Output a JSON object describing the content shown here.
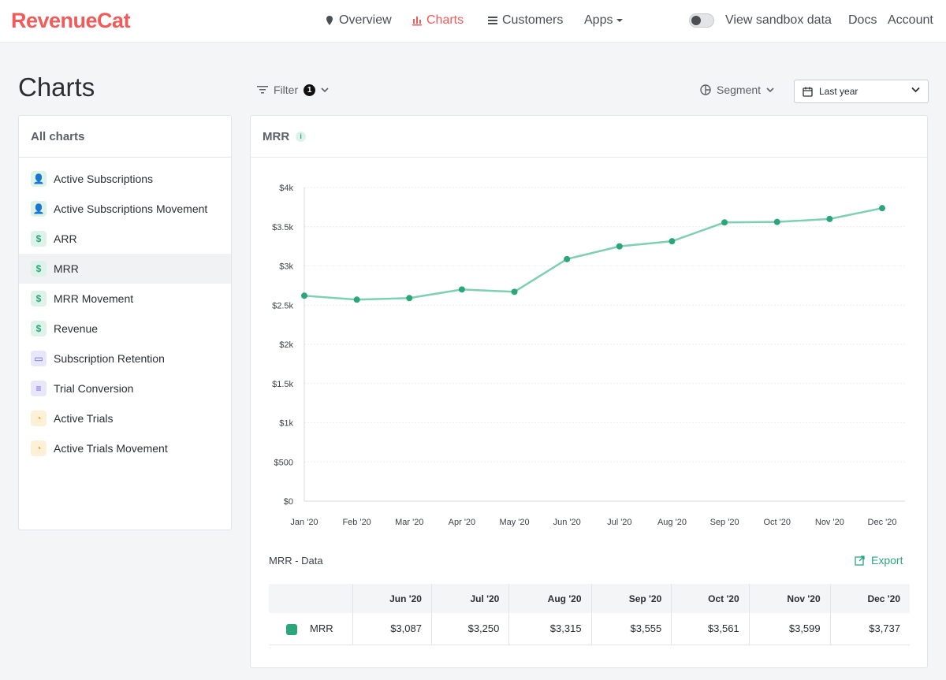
{
  "brand": {
    "name": "RevenueCat",
    "color": "#f25a5a"
  },
  "nav": {
    "items": [
      {
        "label": "Overview",
        "icon": "map-pin-icon"
      },
      {
        "label": "Charts",
        "icon": "bar-chart-icon",
        "active": true
      },
      {
        "label": "Customers",
        "icon": "list-icon"
      },
      {
        "label": "Apps",
        "icon": "caret-down-icon"
      }
    ],
    "sandbox_label": "View sandbox data",
    "sandbox_enabled": false,
    "docs": "Docs",
    "account": "Account"
  },
  "page": {
    "title": "Charts",
    "filter_label": "Filter",
    "filter_count": "1",
    "segment_label": "Segment",
    "date_range": "Last year"
  },
  "sidebar": {
    "heading": "All charts",
    "items": [
      {
        "label": "Active Subscriptions",
        "icon": "user-icon",
        "glyph": "👤",
        "tone": "green"
      },
      {
        "label": "Active Subscriptions Movement",
        "icon": "user-icon",
        "glyph": "👤",
        "tone": "green"
      },
      {
        "label": "ARR",
        "icon": "dollar-icon",
        "glyph": "$",
        "tone": "green"
      },
      {
        "label": "MRR",
        "icon": "dollar-icon",
        "glyph": "$",
        "tone": "green",
        "selected": true
      },
      {
        "label": "MRR Movement",
        "icon": "dollar-icon",
        "glyph": "$",
        "tone": "green"
      },
      {
        "label": "Revenue",
        "icon": "dollar-icon",
        "glyph": "$",
        "tone": "green"
      },
      {
        "label": "Subscription Retention",
        "icon": "calendar-icon",
        "glyph": "▭",
        "tone": "purple"
      },
      {
        "label": "Trial Conversion",
        "icon": "funnel-icon",
        "glyph": "≡",
        "tone": "purple"
      },
      {
        "label": "Active Trials",
        "icon": "clock-icon",
        "glyph": "◔",
        "tone": "orange"
      },
      {
        "label": "Active Trials Movement",
        "icon": "clock-icon",
        "glyph": "◔",
        "tone": "orange"
      }
    ]
  },
  "card": {
    "title": "MRR",
    "info_glyph": "i",
    "data_title": "MRR - Data",
    "export_label": "Export"
  },
  "chart_data": {
    "type": "line",
    "title": "MRR",
    "xlabel": "",
    "ylabel": "",
    "x": [
      "Jan '20",
      "Feb '20",
      "Mar '20",
      "Apr '20",
      "May '20",
      "Jun '20",
      "Jul '20",
      "Aug '20",
      "Sep '20",
      "Oct '20",
      "Nov '20",
      "Dec '20"
    ],
    "series": [
      {
        "name": "MRR",
        "color": "#2ba57a",
        "line_color": "#7fcfb2",
        "values": [
          2620,
          2570,
          2590,
          2700,
          2670,
          3087,
          3250,
          3315,
          3555,
          3561,
          3599,
          3737
        ]
      }
    ],
    "yticks": [
      {
        "value": 0,
        "label": "$0"
      },
      {
        "value": 500,
        "label": "$500"
      },
      {
        "value": 1000,
        "label": "$1k"
      },
      {
        "value": 1500,
        "label": "$1.5k"
      },
      {
        "value": 2000,
        "label": "$2k"
      },
      {
        "value": 2500,
        "label": "$2.5k"
      },
      {
        "value": 3000,
        "label": "$3k"
      },
      {
        "value": 3500,
        "label": "$3.5k"
      },
      {
        "value": 4000,
        "label": "$4k"
      }
    ],
    "ylim": [
      0,
      4000
    ],
    "grid": true,
    "legend": "none"
  },
  "table": {
    "columns": [
      "Jun '20",
      "Jul '20",
      "Aug '20",
      "Sep '20",
      "Oct '20",
      "Nov '20",
      "Dec '20"
    ],
    "rows": [
      {
        "label": "MRR",
        "color": "#2ba57a",
        "cells": [
          "$3,087",
          "$3,250",
          "$3,315",
          "$3,555",
          "$3,561",
          "$3,599",
          "$3,737"
        ]
      }
    ]
  }
}
